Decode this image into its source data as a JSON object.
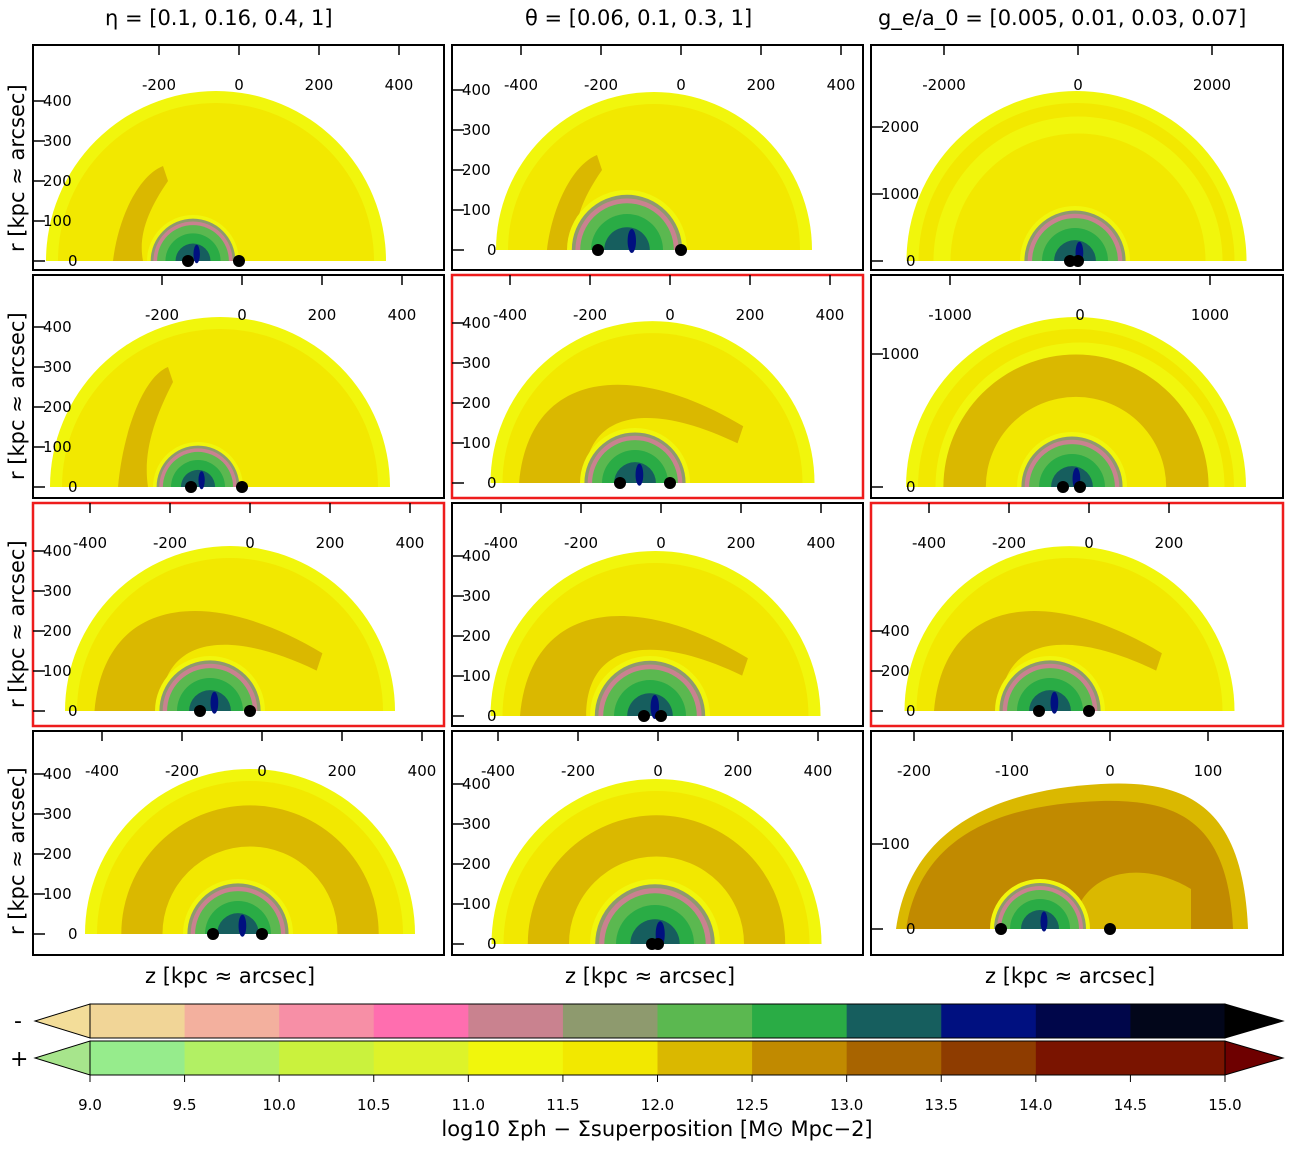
{
  "column_titles": [
    "η = [0.1,  0.16,  0.4,  1]",
    "θ = [0.06,  0.1,  0.3,  1]",
    "g_e/a_0 = [0.005,  0.01,  0.03,  0.07]"
  ],
  "x_axis_label": "z [kpc ≈ arcsec]",
  "y_axis_label": "r [kpc ≈ arcsec]",
  "colorbar": {
    "label": "log10  Σph − Σsuperposition  [M⊙ Mpc−2]",
    "negative_sign": "-",
    "positive_sign": "+",
    "ticks": [
      "9.0",
      "9.5",
      "10.0",
      "10.5",
      "11.0",
      "11.5",
      "12.0",
      "12.5",
      "13.0",
      "13.5",
      "14.0",
      "14.5",
      "15.0"
    ],
    "negative_colors": [
      "#f3dd99",
      "#f1d597",
      "#f3b09e",
      "#f78fa6",
      "#ff6eaf",
      "#c9828f",
      "#8e9a6e",
      "#5bb850",
      "#2aac45",
      "#165e5e",
      "#001080",
      "#00064a",
      "#02061a",
      "#000000"
    ],
    "positive_colors": [
      "#a7e58c",
      "#96ec8c",
      "#b2f064",
      "#caf23d",
      "#ddf32a",
      "#f1f60c",
      "#f2e800",
      "#dab800",
      "#c18a00",
      "#a86400",
      "#8e3c00",
      "#7a1400",
      "#6e0000"
    ]
  },
  "highlight_color": "#ee1c1c",
  "chart_data": [
    {
      "type": "heatmap",
      "row": 1,
      "col": 1,
      "highlighted": false,
      "x_ticks": [
        "-200",
        "0",
        "200",
        "400"
      ],
      "y_ticks": [
        "0",
        "100",
        "200",
        "300",
        "400"
      ]
    },
    {
      "type": "heatmap",
      "row": 1,
      "col": 2,
      "highlighted": false,
      "x_ticks": [
        "-400",
        "-200",
        "0",
        "200",
        "400"
      ],
      "y_ticks": [
        "0",
        "100",
        "200",
        "300",
        "400"
      ]
    },
    {
      "type": "heatmap",
      "row": 1,
      "col": 3,
      "highlighted": false,
      "x_ticks": [
        "-2000",
        "0",
        "2000"
      ],
      "y_ticks": [
        "0",
        "1000",
        "2000"
      ]
    },
    {
      "type": "heatmap",
      "row": 2,
      "col": 1,
      "highlighted": false,
      "x_ticks": [
        "-200",
        "0",
        "200",
        "400"
      ],
      "y_ticks": [
        "0",
        "100",
        "200",
        "300",
        "400"
      ]
    },
    {
      "type": "heatmap",
      "row": 2,
      "col": 2,
      "highlighted": true,
      "x_ticks": [
        "-400",
        "-200",
        "0",
        "200",
        "400"
      ],
      "y_ticks": [
        "0",
        "100",
        "200",
        "300",
        "400"
      ]
    },
    {
      "type": "heatmap",
      "row": 2,
      "col": 3,
      "highlighted": false,
      "x_ticks": [
        "-1000",
        "0",
        "1000"
      ],
      "y_ticks": [
        "0",
        "1000"
      ]
    },
    {
      "type": "heatmap",
      "row": 3,
      "col": 1,
      "highlighted": true,
      "x_ticks": [
        "-400",
        "-200",
        "0",
        "200",
        "400"
      ],
      "y_ticks": [
        "0",
        "100",
        "200",
        "300",
        "400"
      ]
    },
    {
      "type": "heatmap",
      "row": 3,
      "col": 2,
      "highlighted": false,
      "x_ticks": [
        "-400",
        "-200",
        "0",
        "200",
        "400"
      ],
      "y_ticks": [
        "0",
        "100",
        "200",
        "300",
        "400"
      ]
    },
    {
      "type": "heatmap",
      "row": 3,
      "col": 3,
      "highlighted": true,
      "x_ticks": [
        "-400",
        "-200",
        "0",
        "200"
      ],
      "y_ticks": [
        "0",
        "200",
        "400"
      ]
    },
    {
      "type": "heatmap",
      "row": 4,
      "col": 1,
      "highlighted": false,
      "x_ticks": [
        "-400",
        "-200",
        "0",
        "200",
        "400"
      ],
      "y_ticks": [
        "0",
        "100",
        "200",
        "300",
        "400"
      ]
    },
    {
      "type": "heatmap",
      "row": 4,
      "col": 2,
      "highlighted": false,
      "x_ticks": [
        "-400",
        "-200",
        "0",
        "200",
        "400"
      ],
      "y_ticks": [
        "0",
        "100",
        "200",
        "300",
        "400"
      ]
    },
    {
      "type": "heatmap",
      "row": 4,
      "col": 3,
      "highlighted": false,
      "x_ticks": [
        "-200",
        "-100",
        "0",
        "100"
      ],
      "y_ticks": [
        "0",
        "100"
      ]
    }
  ]
}
